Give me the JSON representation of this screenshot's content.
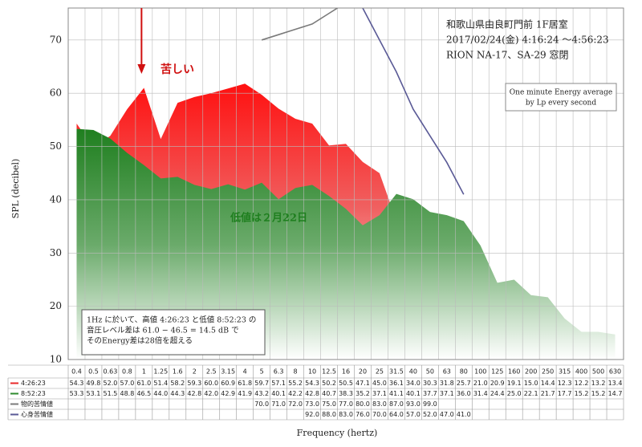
{
  "chart_data": {
    "type": "area",
    "title_lines": [
      "和歌山県由良町門前 1F居室",
      "2017/02/24(金) 4:16:24 ～4:56:23",
      "RION NA-17、SA-29 窓閉"
    ],
    "subtitle_lines": [
      "One minute Energy average",
      "by Lp every second"
    ],
    "x_label": "Frequency (hertz)",
    "y_label": "SPL (decibel)",
    "annotations": {
      "arrow_text": "苦しい",
      "low_note": "低値は２月22日",
      "note_lines": [
        "1Hz に於いて、高値 4:26:23 と低値 8:52:23 の",
        "音圧レベル差は 61.0 − 46.5 = 14.5 dB で",
        "そのEnergy差は28倍を超える"
      ]
    },
    "categories": [
      "0.4",
      "0.5",
      "0.63",
      "0.8",
      "1",
      "1.25",
      "1.6",
      "2",
      "2.5",
      "3.15",
      "4",
      "5",
      "6.3",
      "8",
      "10",
      "12.5",
      "16",
      "20",
      "25",
      "31.5",
      "40",
      "50",
      "63",
      "80",
      "100",
      "125",
      "160",
      "200",
      "250",
      "315",
      "400",
      "500",
      "630"
    ],
    "series": [
      {
        "name": "4:26:23",
        "color": "#e8282a",
        "style": "area",
        "values": [
          54.3,
          49.8,
          52.0,
          57.0,
          61.0,
          51.4,
          58.2,
          59.3,
          60.0,
          60.9,
          61.8,
          59.7,
          57.1,
          55.2,
          54.3,
          50.2,
          50.5,
          47.1,
          45.0,
          36.1,
          34.0,
          30.3,
          31.8,
          25.7,
          21.0,
          20.9,
          19.1,
          15.0,
          14.4,
          12.3,
          12.2,
          13.2,
          13.4
        ],
        "value_labels": [
          "54.3",
          "49.8",
          "52.0",
          "57.0",
          "61.0",
          "51.4",
          "58.2",
          "59.3",
          "60.0",
          "60.9",
          "61.8",
          "59.7",
          "57.1",
          "55.2",
          "54.3",
          "50.2",
          "50.5",
          "47.1",
          "45.0",
          "36.1",
          "34.0",
          "30.3",
          "31.8",
          "25.7",
          "21.0",
          "20.9",
          "19.1",
          "15.0",
          "14.4",
          "12.3",
          "12.2",
          "13.2",
          "13.4"
        ]
      },
      {
        "name": "8:52:23",
        "color": "#2e8b2e",
        "style": "area",
        "values": [
          53.3,
          53.1,
          51.5,
          48.8,
          46.5,
          44.0,
          44.3,
          42.8,
          42.0,
          42.9,
          41.9,
          43.2,
          40.1,
          42.2,
          42.8,
          40.7,
          38.3,
          35.2,
          37.1,
          41.1,
          40.1,
          37.7,
          37.1,
          36.0,
          31.4,
          24.4,
          25.0,
          22.1,
          21.7,
          17.7,
          15.2,
          15.2,
          14.7
        ],
        "value_labels": [
          "53.3",
          "53.1",
          "51.5",
          "48.8",
          "46.5",
          "44.0",
          "44.3",
          "42.8",
          "42.0",
          "42.9",
          "41.9",
          "43.2",
          "40.1",
          "42.2",
          "42.8",
          "40.7",
          "38.3",
          "35.2",
          "37.1",
          "41.1",
          "40.1",
          "37.7",
          "37.1",
          "36.0",
          "31.4",
          "24.4",
          "25.0",
          "22.1",
          "21.7",
          "17.7",
          "15.2",
          "15.2",
          "14.7"
        ]
      },
      {
        "name": "物的苦情値",
        "color": "#7a7a7a",
        "style": "line",
        "values": [
          null,
          null,
          null,
          null,
          null,
          null,
          null,
          null,
          null,
          null,
          null,
          70.0,
          71.0,
          72.0,
          73.0,
          75.0,
          77.0,
          80.0,
          83.0,
          87.0,
          93.0,
          99.0,
          null,
          null,
          null,
          null,
          null,
          null,
          null,
          null,
          null,
          null,
          null
        ],
        "value_labels": [
          null,
          null,
          null,
          null,
          null,
          null,
          null,
          null,
          null,
          null,
          null,
          "70.0",
          "71.0",
          "72.0",
          "73.0",
          "75.0",
          "77.0",
          "80.0",
          "83.0",
          "87.0",
          "93.0",
          "99.0",
          null,
          null,
          null,
          null,
          null,
          null,
          null,
          null,
          null,
          null,
          null
        ]
      },
      {
        "name": "心身苦情値",
        "color": "#5a5a96",
        "style": "line",
        "values": [
          null,
          null,
          null,
          null,
          null,
          null,
          null,
          null,
          null,
          null,
          null,
          null,
          null,
          null,
          92.0,
          88.0,
          83.0,
          76.0,
          70.0,
          64.0,
          57.0,
          52.0,
          47.0,
          41.0,
          null,
          null,
          null,
          null,
          null,
          null,
          null,
          null,
          null
        ],
        "value_labels": [
          null,
          null,
          null,
          null,
          null,
          null,
          null,
          null,
          null,
          null,
          null,
          null,
          null,
          null,
          "92.0",
          "88.0",
          "83.0",
          "76.0",
          "70.0",
          "64.0",
          "57.0",
          "52.0",
          "47.0",
          "41.0",
          null,
          null,
          null,
          null,
          null,
          null,
          null,
          null,
          null
        ]
      }
    ],
    "ylim": [
      10,
      76
    ],
    "yticks": [
      10,
      20,
      30,
      40,
      50,
      60,
      70
    ],
    "grid": true
  }
}
